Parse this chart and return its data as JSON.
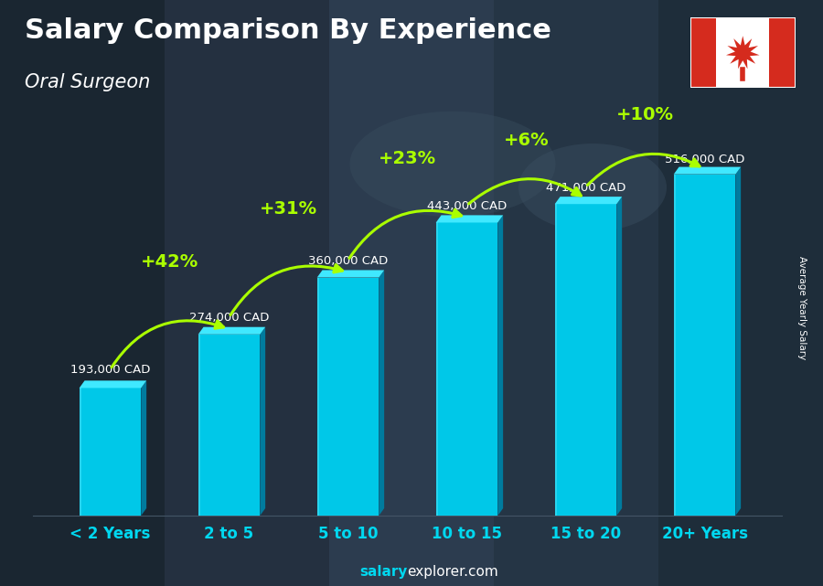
{
  "title": "Salary Comparison By Experience",
  "subtitle": "Oral Surgeon",
  "ylabel": "Average Yearly Salary",
  "categories": [
    "< 2 Years",
    "2 to 5",
    "5 to 10",
    "10 to 15",
    "15 to 20",
    "20+ Years"
  ],
  "values": [
    193000,
    274000,
    360000,
    443000,
    471000,
    516000
  ],
  "salary_labels": [
    "193,000 CAD",
    "274,000 CAD",
    "360,000 CAD",
    "443,000 CAD",
    "471,000 CAD",
    "516,000 CAD"
  ],
  "pct_labels": [
    "+42%",
    "+31%",
    "+23%",
    "+6%",
    "+10%"
  ],
  "bar_color": "#00c8e8",
  "bar_edge_color": "#55eeff",
  "title_color": "#ffffff",
  "subtitle_color": "#ffffff",
  "pct_color": "#aaff00",
  "salary_label_color": "#ffffff",
  "xtick_color": "#00d8f0",
  "bg_color": "#2b3a47",
  "footer_bold": "salary",
  "footer_normal": "explorer.com",
  "footer_color_bold": "#00d8f0",
  "footer_color_normal": "#ffffff",
  "source_label": "Average Yearly Salary",
  "source_bg": "#000000",
  "ylim_max": 620000,
  "bar_width": 0.52,
  "figsize": [
    9.0,
    6.41
  ],
  "dpi": 100
}
